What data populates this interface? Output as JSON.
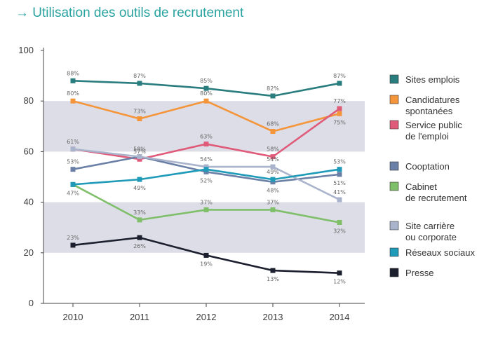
{
  "chart_data": {
    "type": "line",
    "title": "→ Utilisation des outils de recrutement",
    "title_color": "#2aa3a0",
    "x": [
      "2010",
      "2011",
      "2012",
      "2013",
      "2014"
    ],
    "ylim": [
      0,
      100
    ],
    "yticks": [
      "0",
      "20",
      "40",
      "60",
      "80",
      "100"
    ],
    "bands": [
      [
        20,
        40
      ],
      [
        60,
        80
      ]
    ],
    "band_color": "#dcdde6",
    "legend_position": "right",
    "series": [
      {
        "name": "Sites emplois",
        "color": "#2a7d7e",
        "values": [
          88,
          87,
          85,
          82,
          87
        ],
        "labels": [
          "88%",
          "87%",
          "85%",
          "82%",
          "87%"
        ]
      },
      {
        "name": "Candidatures\nspontanées",
        "color": "#f5953a",
        "values": [
          80,
          73,
          80,
          68,
          75
        ],
        "labels": [
          "80%",
          "73%",
          "80%",
          "68%",
          "75%"
        ]
      },
      {
        "name": "Service public\nde l'emploi",
        "color": "#e05a7a",
        "values": [
          61,
          57,
          63,
          58,
          77
        ],
        "labels": [
          "61%",
          "57%",
          "63%",
          "58%",
          "77%"
        ]
      },
      {
        "name": "Cooptation",
        "color": "#6b80a6",
        "values": [
          53,
          58,
          52,
          48,
          51
        ],
        "labels": [
          "53%",
          "58%",
          "52%",
          "48%",
          "51%"
        ]
      },
      {
        "name": "Cabinet\nde recrutement",
        "color": "#7fbf6a",
        "values": [
          47,
          33,
          37,
          37,
          32
        ],
        "labels": [
          "47%",
          "33%",
          "37%",
          "37%",
          "32%"
        ]
      },
      {
        "name": "Site carrière\nou corporate",
        "color": "#a9b4cc",
        "values": [
          61,
          58,
          54,
          54,
          41
        ],
        "labels": [
          "",
          "",
          "54%",
          "54%",
          "41%"
        ]
      },
      {
        "name": "Réseaux sociaux",
        "color": "#1f9ab8",
        "values": [
          47,
          49,
          53,
          49,
          53
        ],
        "labels": [
          "",
          "49%",
          "",
          "49%",
          "53%"
        ]
      },
      {
        "name": "Presse",
        "color": "#1b1f2e",
        "values": [
          23,
          26,
          19,
          13,
          12
        ],
        "labels": [
          "23%",
          "26%",
          "19%",
          "13%",
          "12%"
        ]
      }
    ]
  }
}
